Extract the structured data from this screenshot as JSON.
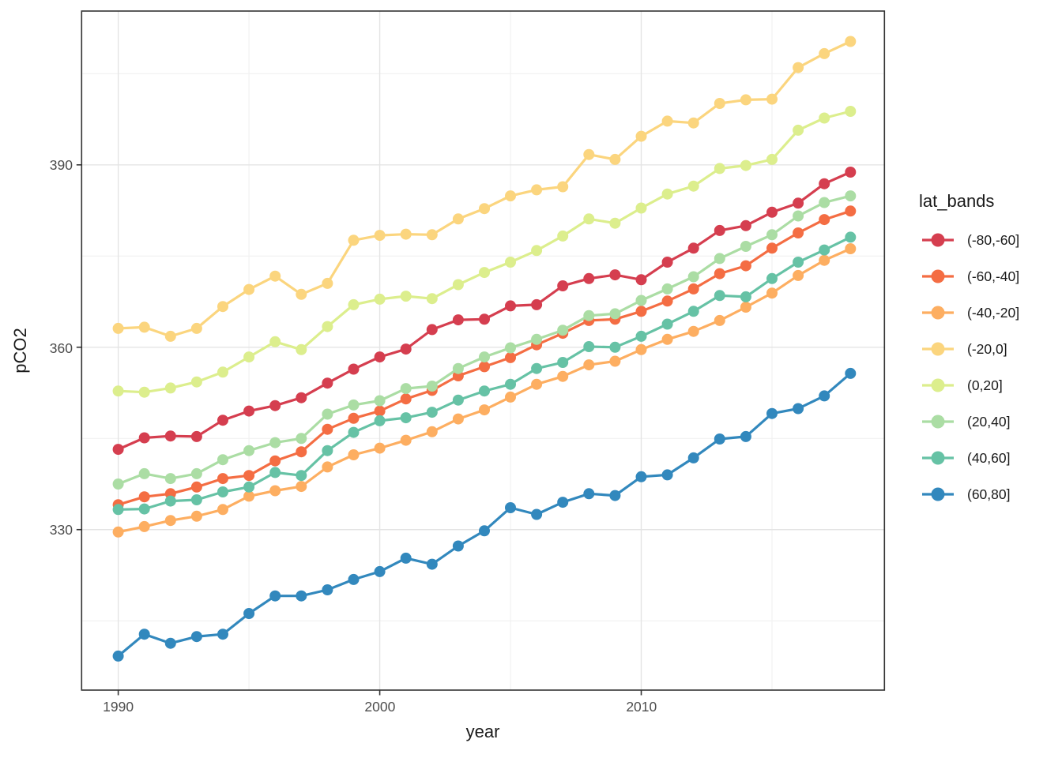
{
  "chart_data": {
    "type": "line",
    "title": "",
    "xlabel": "year",
    "ylabel": "pCO2",
    "legend_title": "lat_bands",
    "legend_position": "right",
    "grid": true,
    "background": "#ffffff",
    "panel_border_color": "#333333",
    "grid_major_color": "#e4e4e4",
    "grid_minor_color": "#efefef",
    "tick_mark_color": "#333333",
    "tick_label_color": "#4d4d4d",
    "axis_title_color": "#1a1a1a",
    "legend_text_color": "#1a1a1a",
    "xlim": [
      1988.6,
      2019.3
    ],
    "ylim": [
      303.6,
      415.3
    ],
    "xticks": {
      "major": [
        1990,
        2000,
        2010
      ],
      "labels": [
        "1990",
        "2000",
        "2010"
      ],
      "minor": [
        1995,
        2005,
        2015
      ]
    },
    "yticks": {
      "major": [
        330,
        360,
        390
      ],
      "labels": [
        "330",
        "360",
        "390"
      ],
      "minor": [
        315,
        345,
        375,
        405
      ]
    },
    "x": [
      1990,
      1991,
      1992,
      1993,
      1994,
      1995,
      1996,
      1997,
      1998,
      1999,
      2000,
      2001,
      2002,
      2003,
      2004,
      2005,
      2006,
      2007,
      2008,
      2009,
      2010,
      2011,
      2012,
      2013,
      2014,
      2015,
      2016,
      2017,
      2018
    ],
    "series": [
      {
        "name": "(-80,-60]",
        "color": "#d53e4f",
        "values": [
          343.2,
          345.1,
          345.4,
          345.3,
          348.0,
          349.5,
          350.4,
          351.7,
          354.1,
          356.4,
          358.4,
          359.7,
          362.9,
          364.5,
          364.6,
          366.8,
          367.0,
          370.1,
          371.3,
          371.9,
          371.1,
          374.0,
          376.3,
          379.2,
          380.0,
          382.2,
          383.7,
          386.9,
          388.8
        ]
      },
      {
        "name": "(-60,-40]",
        "color": "#f46d43",
        "values": [
          334.1,
          335.4,
          335.9,
          337.0,
          338.4,
          338.9,
          341.3,
          342.8,
          346.5,
          348.3,
          349.5,
          351.5,
          352.9,
          355.3,
          356.8,
          358.3,
          360.4,
          362.3,
          364.4,
          364.6,
          365.9,
          367.6,
          369.6,
          372.1,
          373.4,
          376.3,
          378.8,
          381.0,
          382.4
        ]
      },
      {
        "name": "(-40,-20]",
        "color": "#fdae61",
        "values": [
          329.6,
          330.5,
          331.5,
          332.2,
          333.3,
          335.5,
          336.4,
          337.1,
          340.3,
          342.3,
          343.4,
          344.7,
          346.1,
          348.2,
          349.7,
          351.8,
          353.9,
          355.2,
          357.1,
          357.7,
          359.6,
          361.3,
          362.6,
          364.4,
          366.6,
          368.9,
          371.8,
          374.3,
          376.2
        ]
      },
      {
        "name": "(-20,0]",
        "color": "#fbd57e",
        "values": [
          363.1,
          363.3,
          361.8,
          363.1,
          366.7,
          369.5,
          371.7,
          368.7,
          370.5,
          377.6,
          378.4,
          378.6,
          378.5,
          381.1,
          382.8,
          384.9,
          385.9,
          386.4,
          391.7,
          390.9,
          394.7,
          397.2,
          396.9,
          400.1,
          400.7,
          400.8,
          406.0,
          408.3,
          410.3
        ]
      },
      {
        "name": "(0,20]",
        "color": "#dcee8d",
        "values": [
          352.8,
          352.6,
          353.3,
          354.3,
          355.9,
          358.4,
          360.9,
          359.6,
          363.4,
          367.0,
          367.9,
          368.4,
          368.0,
          370.3,
          372.3,
          374.0,
          375.9,
          378.3,
          381.1,
          380.4,
          382.9,
          385.2,
          386.5,
          389.4,
          389.9,
          390.9,
          395.7,
          397.7,
          398.8
        ]
      },
      {
        "name": "(20,40]",
        "color": "#abdda4",
        "values": [
          337.5,
          339.2,
          338.4,
          339.2,
          341.5,
          343.0,
          344.3,
          345.0,
          349.0,
          350.5,
          351.2,
          353.2,
          353.6,
          356.5,
          358.4,
          359.9,
          361.3,
          362.8,
          365.2,
          365.5,
          367.7,
          369.6,
          371.6,
          374.6,
          376.6,
          378.5,
          381.6,
          383.8,
          384.9
        ]
      },
      {
        "name": "(40,60]",
        "color": "#66c2a5",
        "values": [
          333.3,
          333.4,
          334.7,
          334.9,
          336.2,
          337.0,
          339.4,
          338.9,
          343.0,
          346.0,
          347.9,
          348.4,
          349.3,
          351.3,
          352.8,
          353.9,
          356.5,
          357.5,
          360.1,
          360.0,
          361.8,
          363.8,
          365.9,
          368.5,
          368.3,
          371.3,
          374.0,
          376.0,
          378.1
        ]
      },
      {
        "name": "(60,80]",
        "color": "#3288bd",
        "values": [
          309.2,
          312.8,
          311.3,
          312.4,
          312.8,
          316.2,
          319.1,
          319.1,
          320.1,
          321.8,
          323.1,
          325.3,
          324.3,
          327.3,
          329.8,
          333.6,
          332.5,
          334.5,
          335.9,
          335.6,
          338.7,
          339.0,
          341.8,
          344.9,
          345.3,
          349.1,
          349.9,
          352.0,
          355.7
        ]
      }
    ]
  }
}
